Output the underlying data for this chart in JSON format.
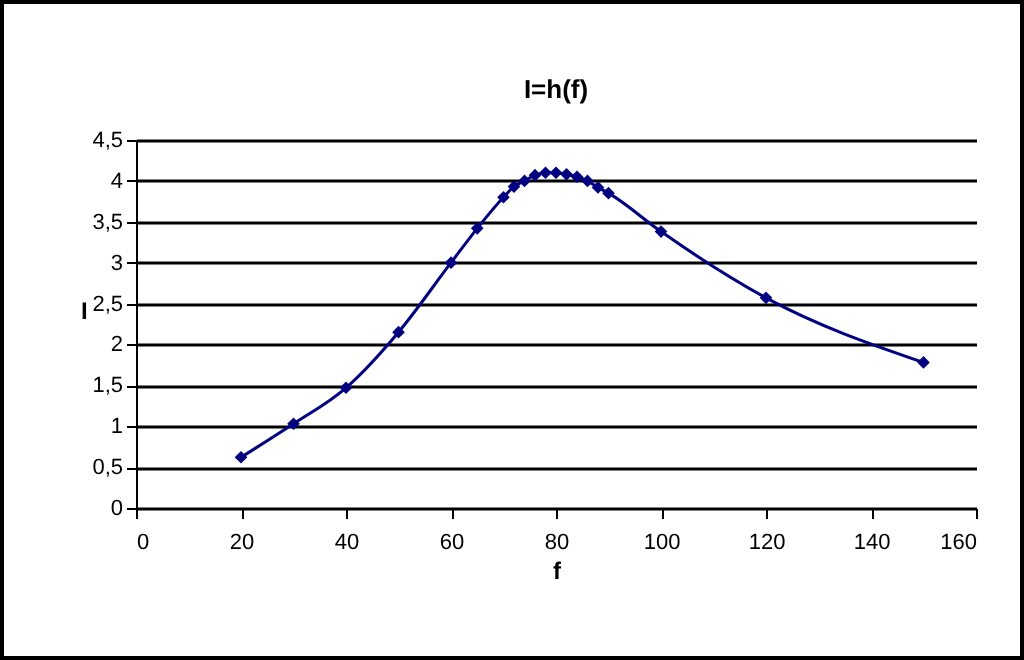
{
  "chart_data": {
    "type": "line",
    "title": "I=h(f)",
    "xlabel": "f",
    "ylabel": "I",
    "x": [
      20,
      30,
      40,
      50,
      60,
      65,
      70,
      72,
      74,
      76,
      78,
      80,
      82,
      84,
      86,
      88,
      90,
      100,
      120,
      150
    ],
    "series": [
      {
        "color": "#000080",
        "values": [
          0.62,
          1.03,
          1.47,
          2.15,
          3.0,
          3.42,
          3.8,
          3.93,
          4.0,
          4.07,
          4.1,
          4.1,
          4.08,
          4.05,
          4.0,
          3.92,
          3.85,
          3.38,
          2.57,
          1.78
        ]
      }
    ],
    "xlim": [
      0,
      160
    ],
    "xticks": [
      0,
      20,
      40,
      60,
      80,
      100,
      120,
      140,
      160
    ],
    "ylim": [
      0,
      4.5
    ],
    "yticks": [
      0,
      {
        "value": 0.5,
        "label": "0,5"
      },
      1,
      {
        "value": 1.5,
        "label": "1,5"
      },
      2,
      {
        "value": 2.5,
        "label": "2,5"
      },
      3,
      {
        "value": 3.5,
        "label": "3,5"
      },
      4,
      {
        "value": 4.5,
        "label": "4,5"
      }
    ],
    "grid": "y",
    "marker": "diamond",
    "line_style": "solid"
  }
}
